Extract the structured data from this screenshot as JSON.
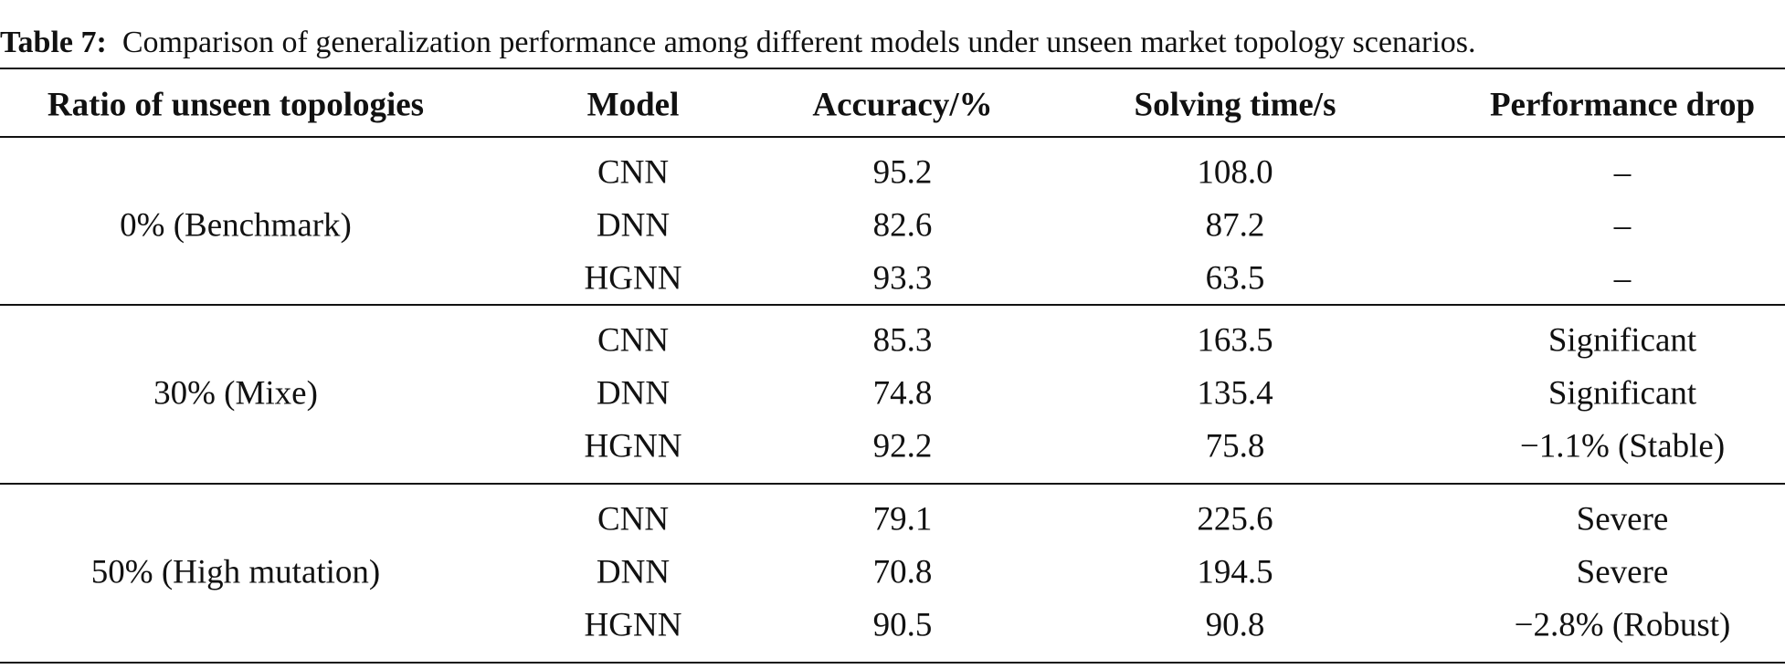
{
  "caption": {
    "label": "Table 7:",
    "text": "Comparison of generalization performance among different models under unseen market topology scenarios."
  },
  "table": {
    "header": [
      "Ratio of unseen topologies",
      "Model",
      "Accuracy/%",
      "Solving time/s",
      "Performance drop"
    ],
    "groups": [
      {
        "ratio": "0% (Benchmark)",
        "rows": [
          [
            "CNN",
            "95.2",
            "108.0",
            "–"
          ],
          [
            "DNN",
            "82.6",
            "87.2",
            "–"
          ],
          [
            "HGNN",
            "93.3",
            "63.5",
            "–"
          ]
        ]
      },
      {
        "ratio": "30% (Mixe)",
        "rows": [
          [
            "CNN",
            "85.3",
            "163.5",
            "Significant"
          ],
          [
            "DNN",
            "74.8",
            "135.4",
            "Significant"
          ],
          [
            "HGNN",
            "92.2",
            "75.8",
            "−1.1% (Stable)"
          ]
        ]
      },
      {
        "ratio": "50% (High mutation)",
        "rows": [
          [
            "CNN",
            "79.1",
            "225.6",
            "Severe"
          ],
          [
            "DNN",
            "70.8",
            "194.5",
            "Severe"
          ],
          [
            "HGNN",
            "90.5",
            "90.8",
            "−2.8% (Robust)"
          ]
        ]
      }
    ]
  }
}
